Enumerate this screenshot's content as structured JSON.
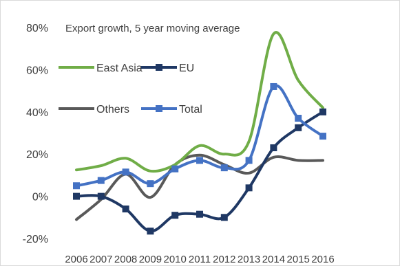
{
  "chart_data": {
    "type": "line",
    "title": "Export growth, 5 year moving average",
    "xlabel": "",
    "ylabel": "",
    "categories": [
      "2006",
      "2007",
      "2008",
      "2009",
      "2010",
      "2011",
      "2012",
      "2013",
      "2014",
      "2015",
      "2016"
    ],
    "ylim": [
      -20,
      80
    ],
    "yticks": [
      -20,
      0,
      20,
      40,
      60,
      80
    ],
    "ytick_labels": [
      "-20%",
      "0%",
      "20%",
      "40%",
      "60%",
      "80%"
    ],
    "grid": false,
    "legend_position": "top-left",
    "series": [
      {
        "name": "East Asia",
        "color": "#70AD47",
        "marker": "none",
        "values": [
          12.5,
          14.5,
          18,
          12,
          15,
          24,
          20,
          26,
          77,
          55,
          42
        ]
      },
      {
        "name": "EU",
        "color": "#1F3864",
        "marker": "square",
        "values": [
          0,
          0,
          -6,
          -16.5,
          -9,
          -8.5,
          -10,
          4,
          23,
          32.5,
          40
        ]
      },
      {
        "name": "Others",
        "color": "#595959",
        "marker": "none",
        "values": [
          -11,
          -1.5,
          10.5,
          -0.5,
          15,
          19.5,
          15,
          11,
          18.5,
          17,
          17
        ]
      },
      {
        "name": "Total",
        "color": "#4472C4",
        "marker": "square",
        "values": [
          5,
          7.5,
          11.5,
          6,
          13,
          17,
          13.5,
          17,
          52,
          37,
          28.5
        ]
      }
    ]
  }
}
